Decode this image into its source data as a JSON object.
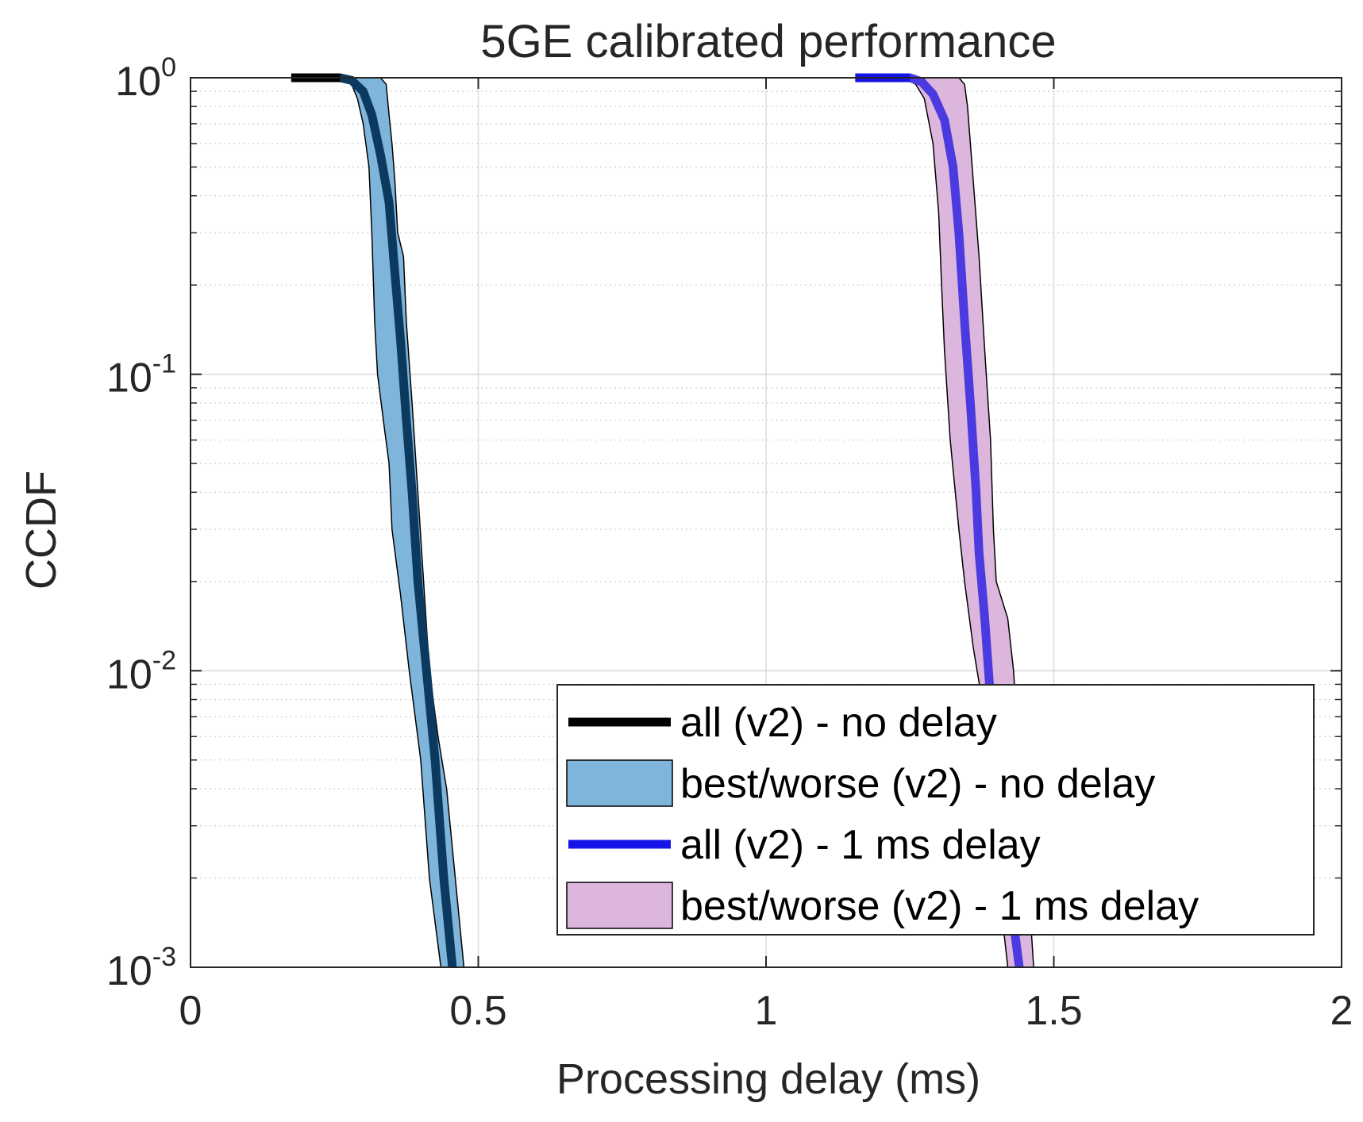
{
  "chart_data": {
    "type": "line",
    "title": "5GE calibrated performance",
    "xlabel": "Processing delay (ms)",
    "ylabel": "CCDF",
    "xlim": [
      0,
      2
    ],
    "ylim": [
      0.001,
      1
    ],
    "yscale": "log",
    "grid": true,
    "legend_position": "bottom-right",
    "x_ticks": [
      "0",
      "0.5",
      "1",
      "1.5",
      "2"
    ],
    "y_ticks": [
      {
        "base": "10",
        "exp": "-3"
      },
      {
        "base": "10",
        "exp": "-2"
      },
      {
        "base": "10",
        "exp": "-1"
      },
      {
        "base": "10",
        "exp": "0"
      }
    ],
    "series": [
      {
        "name": "all (v2) - no delay",
        "kind": "line",
        "color": "#0b3a5e",
        "legend_color": "#000000",
        "points": [
          [
            0.175,
            1.0
          ],
          [
            0.26,
            1.0
          ],
          [
            0.28,
            0.98
          ],
          [
            0.3,
            0.9
          ],
          [
            0.315,
            0.75
          ],
          [
            0.33,
            0.55
          ],
          [
            0.345,
            0.38
          ],
          [
            0.355,
            0.22
          ],
          [
            0.365,
            0.13
          ],
          [
            0.375,
            0.07
          ],
          [
            0.385,
            0.04
          ],
          [
            0.395,
            0.02
          ],
          [
            0.41,
            0.01
          ],
          [
            0.425,
            0.005
          ],
          [
            0.44,
            0.002
          ],
          [
            0.455,
            0.001
          ]
        ]
      },
      {
        "name": "best/worse (v2) - no delay",
        "kind": "band",
        "fill": "#7fb5db",
        "stroke": "#000000",
        "lower": [
          [
            0.26,
            1.0
          ],
          [
            0.28,
            0.95
          ],
          [
            0.29,
            0.85
          ],
          [
            0.3,
            0.7
          ],
          [
            0.31,
            0.5
          ],
          [
            0.315,
            0.3
          ],
          [
            0.32,
            0.15
          ],
          [
            0.325,
            0.1
          ],
          [
            0.335,
            0.07
          ],
          [
            0.345,
            0.05
          ],
          [
            0.35,
            0.03
          ],
          [
            0.365,
            0.018
          ],
          [
            0.38,
            0.01
          ],
          [
            0.4,
            0.005
          ],
          [
            0.415,
            0.002
          ],
          [
            0.435,
            0.001
          ]
        ],
        "upper": [
          [
            0.475,
            0.001
          ],
          [
            0.46,
            0.002
          ],
          [
            0.445,
            0.004
          ],
          [
            0.43,
            0.006
          ],
          [
            0.415,
            0.01
          ],
          [
            0.405,
            0.02
          ],
          [
            0.395,
            0.04
          ],
          [
            0.385,
            0.08
          ],
          [
            0.375,
            0.15
          ],
          [
            0.37,
            0.25
          ],
          [
            0.36,
            0.3
          ],
          [
            0.355,
            0.45
          ],
          [
            0.35,
            0.6
          ],
          [
            0.345,
            0.75
          ],
          [
            0.34,
            0.95
          ],
          [
            0.33,
            1.0
          ]
        ]
      },
      {
        "name": "all (v2) - 1 ms delay",
        "kind": "line",
        "color": "#4a3ae0",
        "legend_color": "#1414e6",
        "points": [
          [
            1.155,
            1.0
          ],
          [
            1.25,
            1.0
          ],
          [
            1.27,
            0.97
          ],
          [
            1.29,
            0.88
          ],
          [
            1.31,
            0.72
          ],
          [
            1.325,
            0.5
          ],
          [
            1.335,
            0.3
          ],
          [
            1.345,
            0.15
          ],
          [
            1.355,
            0.08
          ],
          [
            1.365,
            0.04
          ],
          [
            1.37,
            0.025
          ],
          [
            1.38,
            0.015
          ],
          [
            1.39,
            0.008
          ],
          [
            1.405,
            0.004
          ],
          [
            1.42,
            0.002
          ],
          [
            1.44,
            0.001
          ]
        ]
      },
      {
        "name": "best/worse (v2) - 1 ms delay",
        "kind": "band",
        "fill": "#dcb6dc",
        "stroke": "#000000",
        "lower": [
          [
            1.24,
            1.0
          ],
          [
            1.26,
            0.95
          ],
          [
            1.275,
            0.85
          ],
          [
            1.29,
            0.6
          ],
          [
            1.3,
            0.35
          ],
          [
            1.305,
            0.2
          ],
          [
            1.31,
            0.12
          ],
          [
            1.32,
            0.06
          ],
          [
            1.335,
            0.03
          ],
          [
            1.345,
            0.02
          ],
          [
            1.36,
            0.012
          ],
          [
            1.375,
            0.008
          ],
          [
            1.395,
            0.003
          ],
          [
            1.41,
            0.0015
          ],
          [
            1.42,
            0.001
          ]
        ],
        "upper": [
          [
            1.465,
            0.001
          ],
          [
            1.455,
            0.002
          ],
          [
            1.445,
            0.004
          ],
          [
            1.435,
            0.007
          ],
          [
            1.43,
            0.01
          ],
          [
            1.42,
            0.015
          ],
          [
            1.4,
            0.02
          ],
          [
            1.395,
            0.03
          ],
          [
            1.39,
            0.06
          ],
          [
            1.38,
            0.12
          ],
          [
            1.37,
            0.25
          ],
          [
            1.36,
            0.45
          ],
          [
            1.355,
            0.6
          ],
          [
            1.35,
            0.8
          ],
          [
            1.345,
            0.95
          ],
          [
            1.335,
            1.0
          ]
        ]
      }
    ]
  }
}
